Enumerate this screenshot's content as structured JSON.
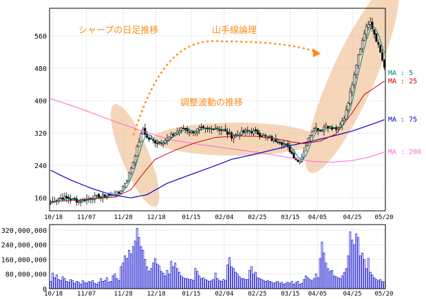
{
  "chart_data": [
    {
      "type": "candlestick",
      "annotations": {
        "title": "シャープの日足推移",
        "theory": "山手線論理",
        "adjustment": "調整波動の推移"
      },
      "y_ticks": [
        "560",
        "480",
        "400",
        "320",
        "240",
        "160"
      ],
      "y_tick_values": [
        560,
        480,
        400,
        320,
        240,
        160
      ],
      "ylim": [
        128,
        628
      ],
      "x_ticks": [
        "10/18",
        "11/07",
        "11/28",
        "12/18",
        "01/15",
        "02/04",
        "02/25",
        "03/15",
        "04/05",
        "04/25",
        "05/20"
      ],
      "grid": true,
      "colors": {
        "candle_up": "#ffffff",
        "candle_down": "#000000",
        "ma5": "#008080",
        "ma25": "#cc0000",
        "ma75": "#0000cc",
        "ma200": "#ff66cc",
        "highlight": "#f5d6b8",
        "annotation": "#ff8c1a"
      },
      "ma_labels": [
        {
          "text": "MA : 5",
          "color": "#008080",
          "value": 468
        },
        {
          "text": "MA : 25",
          "color": "#cc0000",
          "value": 448
        },
        {
          "text": "MA : 75",
          "color": "#0000cc",
          "value": 353
        },
        {
          "text": "MA : 200",
          "color": "#ff66cc",
          "value": 273
        }
      ],
      "anchors": [
        [
          0,
          148
        ],
        [
          4,
          160
        ],
        [
          9,
          158
        ],
        [
          14,
          152
        ],
        [
          19,
          158
        ],
        [
          24,
          163
        ],
        [
          29,
          166
        ],
        [
          34,
          172
        ],
        [
          38,
          205
        ],
        [
          41,
          250
        ],
        [
          44,
          300
        ],
        [
          46,
          330
        ],
        [
          48,
          308
        ],
        [
          51,
          300
        ],
        [
          54,
          296
        ],
        [
          58,
          305
        ],
        [
          62,
          320
        ],
        [
          66,
          332
        ],
        [
          70,
          322
        ],
        [
          74,
          330
        ],
        [
          78,
          328
        ],
        [
          82,
          334
        ],
        [
          86,
          325
        ],
        [
          90,
          312
        ],
        [
          94,
          318
        ],
        [
          98,
          326
        ],
        [
          102,
          322
        ],
        [
          106,
          312
        ],
        [
          110,
          304
        ],
        [
          114,
          300
        ],
        [
          118,
          285
        ],
        [
          121,
          262
        ],
        [
          123,
          250
        ],
        [
          125,
          262
        ],
        [
          127,
          290
        ],
        [
          129,
          318
        ],
        [
          131,
          336
        ],
        [
          134,
          326
        ],
        [
          137,
          340
        ],
        [
          140,
          330
        ],
        [
          143,
          330
        ],
        [
          146,
          358
        ],
        [
          149,
          418
        ],
        [
          151,
          468
        ],
        [
          153,
          515
        ],
        [
          155,
          548
        ],
        [
          157,
          585
        ],
        [
          159,
          590
        ],
        [
          161,
          565
        ],
        [
          163,
          535
        ],
        [
          165,
          500
        ],
        [
          166,
          478
        ]
      ],
      "ma25_anchors": [
        [
          0,
          150
        ],
        [
          20,
          157
        ],
        [
          32,
          162
        ],
        [
          40,
          180
        ],
        [
          46,
          220
        ],
        [
          52,
          255
        ],
        [
          62,
          278
        ],
        [
          72,
          296
        ],
        [
          82,
          309
        ],
        [
          92,
          313
        ],
        [
          102,
          312
        ],
        [
          112,
          306
        ],
        [
          120,
          298
        ],
        [
          126,
          294
        ],
        [
          134,
          300
        ],
        [
          142,
          318
        ],
        [
          150,
          370
        ],
        [
          156,
          415
        ],
        [
          166,
          448
        ]
      ],
      "ma75_anchors": [
        [
          0,
          228
        ],
        [
          10,
          204
        ],
        [
          20,
          184
        ],
        [
          30,
          168
        ],
        [
          40,
          160
        ],
        [
          48,
          168
        ],
        [
          58,
          196
        ],
        [
          70,
          218
        ],
        [
          80,
          236
        ],
        [
          90,
          255
        ],
        [
          100,
          266
        ],
        [
          110,
          278
        ],
        [
          120,
          290
        ],
        [
          130,
          300
        ],
        [
          140,
          312
        ],
        [
          150,
          325
        ],
        [
          160,
          342
        ],
        [
          166,
          353
        ]
      ],
      "ma200_anchors": [
        [
          0,
          405
        ],
        [
          15,
          380
        ],
        [
          30,
          352
        ],
        [
          45,
          326
        ],
        [
          60,
          303
        ],
        [
          75,
          291
        ],
        [
          90,
          281
        ],
        [
          105,
          271
        ],
        [
          120,
          258
        ],
        [
          130,
          250
        ],
        [
          140,
          248
        ],
        [
          150,
          252
        ],
        [
          158,
          260
        ],
        [
          166,
          273
        ]
      ]
    },
    {
      "type": "bar",
      "y_ticks": [
        "320,000,000",
        "240,000,000",
        "160,000,000",
        "80,000,000",
        "0"
      ],
      "y_tick_values": [
        320000000,
        240000000,
        160000000,
        80000000,
        0
      ],
      "ylim": [
        0,
        350000000
      ],
      "x_ticks": [
        "10/18",
        "11/07",
        "11/28",
        "12/18",
        "01/15",
        "02/04",
        "02/25",
        "03/15",
        "04/05",
        "04/25",
        "05/20"
      ],
      "grid": true,
      "colors": {
        "bar": "#0000cc"
      },
      "volume_millions": [
        40,
        85,
        60,
        75,
        50,
        45,
        65,
        55,
        40,
        35,
        50,
        45,
        30,
        40,
        35,
        25,
        45,
        35,
        30,
        40,
        35,
        45,
        30,
        25,
        35,
        55,
        40,
        45,
        60,
        35,
        40,
        70,
        80,
        55,
        45,
        120,
        140,
        180,
        165,
        210,
        190,
        230,
        260,
        330,
        280,
        230,
        210,
        160,
        120,
        95,
        110,
        140,
        165,
        135,
        125,
        95,
        85,
        70,
        100,
        80,
        150,
        120,
        140,
        110,
        90,
        70,
        60,
        55,
        55,
        50,
        50,
        45,
        110,
        95,
        70,
        55,
        60,
        50,
        45,
        40,
        45,
        50,
        85,
        55,
        45,
        40,
        50,
        45,
        130,
        170,
        120,
        110,
        90,
        80,
        65,
        55,
        55,
        50,
        50,
        100,
        120,
        80,
        90,
        60,
        55,
        50,
        45,
        40,
        45,
        40,
        35,
        30,
        35,
        40,
        30,
        35,
        25,
        30,
        35,
        30,
        40,
        25,
        35,
        40,
        25,
        30,
        50,
        70,
        60,
        50,
        45,
        55,
        80,
        60,
        165,
        255,
        195,
        140,
        110,
        95,
        100,
        70,
        65,
        60,
        55,
        70,
        90,
        110,
        180,
        310,
        265,
        240,
        300,
        280,
        180,
        195,
        160,
        110,
        165,
        90,
        75,
        60,
        50,
        45,
        50,
        40,
        35
      ]
    }
  ]
}
